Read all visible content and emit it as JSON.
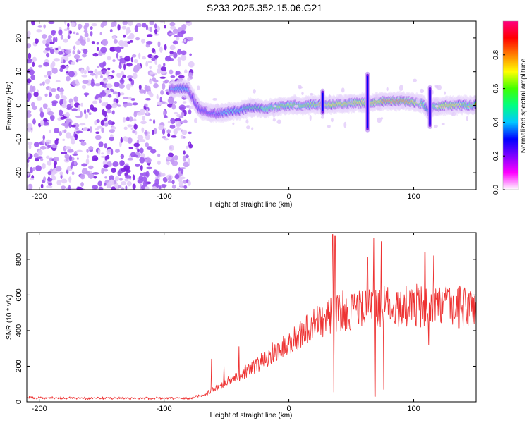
{
  "title": "S233.2025.352.15.06.G21",
  "chart_data": [
    {
      "type": "heatmap",
      "title": "S233.2025.352.15.06.G21",
      "xlabel": "Height of straight line (km)",
      "ylabel": "Frequency (Hz)",
      "xlim": [
        -210,
        150
      ],
      "ylim": [
        -25,
        25
      ],
      "xticks": [
        -200,
        -100,
        0,
        100
      ],
      "yticks": [
        -20,
        -10,
        0,
        10,
        20
      ],
      "grid": false,
      "colorbar": {
        "label": "Normalized spectral amplitude",
        "range": [
          0,
          1
        ],
        "ticks": [
          0.0,
          0.2,
          0.4,
          0.6,
          0.8
        ],
        "tick_labels": [
          "0.0",
          "0.2",
          "0.4",
          "0.6",
          "0.8"
        ],
        "colormap": [
          "#ffffff",
          "#ff00ff",
          "#8000ff",
          "#0000ff",
          "#00c8ff",
          "#00ff80",
          "#40ff00",
          "#ffff00",
          "#ff8000",
          "#ff0000",
          "#ff0080"
        ]
      },
      "noise_region_x": [
        -210,
        -78
      ],
      "ridge": {
        "x": [
          -95,
          -82,
          -78,
          -72,
          -65,
          -58,
          -50,
          -40,
          -30,
          -20,
          -10,
          0,
          10,
          20,
          30,
          40,
          50,
          60,
          70,
          80,
          90,
          100,
          108,
          112,
          116,
          120,
          130,
          140,
          150
        ],
        "freq": [
          5,
          5,
          3,
          -1,
          -2,
          -2.5,
          -2,
          -1.5,
          -0.5,
          -1,
          -0.5,
          0,
          0,
          0.2,
          0.3,
          0.4,
          0.6,
          0.8,
          1,
          1.3,
          1.3,
          1,
          0.5,
          -2,
          0,
          -0.2,
          0,
          0,
          0
        ],
        "amplitude": [
          0.35,
          0.4,
          0.3,
          0.25,
          0.3,
          0.3,
          0.4,
          0.45,
          0.5,
          0.55,
          0.6,
          0.65,
          0.7,
          0.7,
          0.72,
          0.75,
          0.72,
          0.75,
          0.8,
          0.85,
          0.88,
          0.8,
          0.6,
          0.45,
          0.6,
          0.75,
          0.75,
          0.7,
          0.7
        ]
      },
      "spikes": [
        {
          "x": 27,
          "freq_range": [
            -3,
            5
          ]
        },
        {
          "x": 63,
          "freq_range": [
            -8,
            10
          ]
        },
        {
          "x": 113,
          "freq_range": [
            -7,
            6
          ]
        }
      ]
    },
    {
      "type": "line",
      "xlabel": "Height of straight line (km)",
      "ylabel": "SNR (10 * v/v)",
      "xlim": [
        -210,
        150
      ],
      "ylim": [
        0,
        950
      ],
      "xticks": [
        -200,
        -100,
        0,
        100
      ],
      "yticks": [
        0,
        200,
        400,
        600,
        800
      ],
      "grid": false,
      "series": [
        {
          "name": "SNR",
          "color": "#ee3333",
          "baseline": {
            "x": [
              -210,
              -80,
              -70,
              -60,
              -50,
              -40,
              -30,
              -20,
              -10,
              0,
              10,
              20,
              25,
              30,
              40,
              50,
              60,
              80,
              100,
              120,
              150
            ],
            "y": [
              22,
              20,
              35,
              70,
              110,
              150,
              185,
              240,
              290,
              330,
              380,
              430,
              455,
              480,
              505,
              515,
              525,
              535,
              540,
              535,
              530
            ]
          },
          "noise_amplitude": 0.22,
          "spikes": [
            {
              "x": -62,
              "y": 240
            },
            {
              "x": -52,
              "y": 200
            },
            {
              "x": -40,
              "y": 310
            },
            {
              "x": 35,
              "y": 940
            },
            {
              "x": 36,
              "y": 55
            },
            {
              "x": 37,
              "y": 930
            },
            {
              "x": 63,
              "y": 810
            },
            {
              "x": 68,
              "y": 920
            },
            {
              "x": 69,
              "y": 30
            },
            {
              "x": 74,
              "y": 900
            },
            {
              "x": 76,
              "y": 70
            },
            {
              "x": 109,
              "y": 840
            },
            {
              "x": 112,
              "y": 320
            },
            {
              "x": 116,
              "y": 820
            }
          ]
        }
      ]
    }
  ]
}
